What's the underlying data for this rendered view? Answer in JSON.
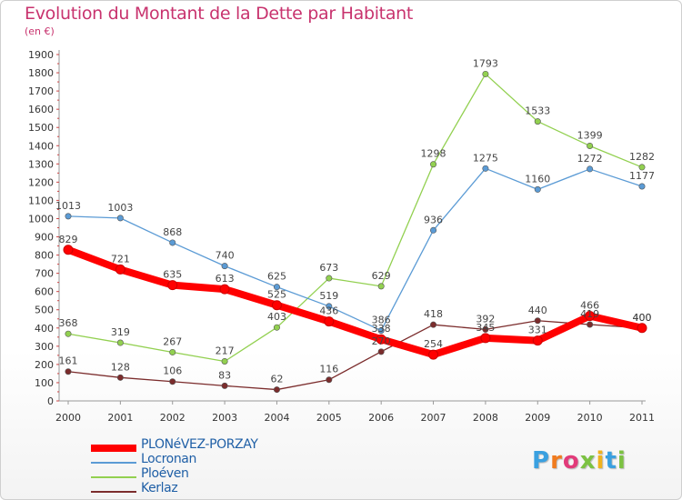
{
  "title": "Evolution du Montant de la Dette par Habitant",
  "subtitle": "(en €)",
  "logo_text": "Proxiti",
  "chart_data": {
    "type": "line",
    "title": "Evolution du Montant de la Dette par Habitant",
    "subtitle": "(en €)",
    "xlabel": "",
    "ylabel": "",
    "ylim": [
      0,
      1900
    ],
    "yticks": [
      0,
      100,
      200,
      300,
      400,
      500,
      600,
      700,
      800,
      900,
      1000,
      1100,
      1200,
      1300,
      1400,
      1500,
      1600,
      1700,
      1800,
      1900
    ],
    "categories": [
      "2000",
      "2001",
      "2002",
      "2003",
      "2004",
      "2005",
      "2006",
      "2007",
      "2008",
      "2009",
      "2010",
      "2011"
    ],
    "grid": false,
    "legend": "bottom-left",
    "series": [
      {
        "name": "PLONéVEZ-PORZAY",
        "color": "#ff0000",
        "values": [
          829,
          721,
          635,
          613,
          525,
          436,
          338,
          254,
          345,
          331,
          466,
          400
        ]
      },
      {
        "name": "Locronan",
        "color": "#5b9bd5",
        "values": [
          1013,
          1003,
          868,
          740,
          625,
          519,
          386,
          936,
          1275,
          1160,
          1272,
          1177
        ]
      },
      {
        "name": "Ploéven",
        "color": "#92d050",
        "values": [
          368,
          319,
          267,
          217,
          403,
          673,
          629,
          1298,
          1793,
          1533,
          1399,
          1282
        ]
      },
      {
        "name": "Kerlaz",
        "color": "#7b2c2c",
        "values": [
          161,
          128,
          106,
          83,
          62,
          116,
          270,
          418,
          392,
          440,
          419,
          400
        ]
      }
    ]
  }
}
